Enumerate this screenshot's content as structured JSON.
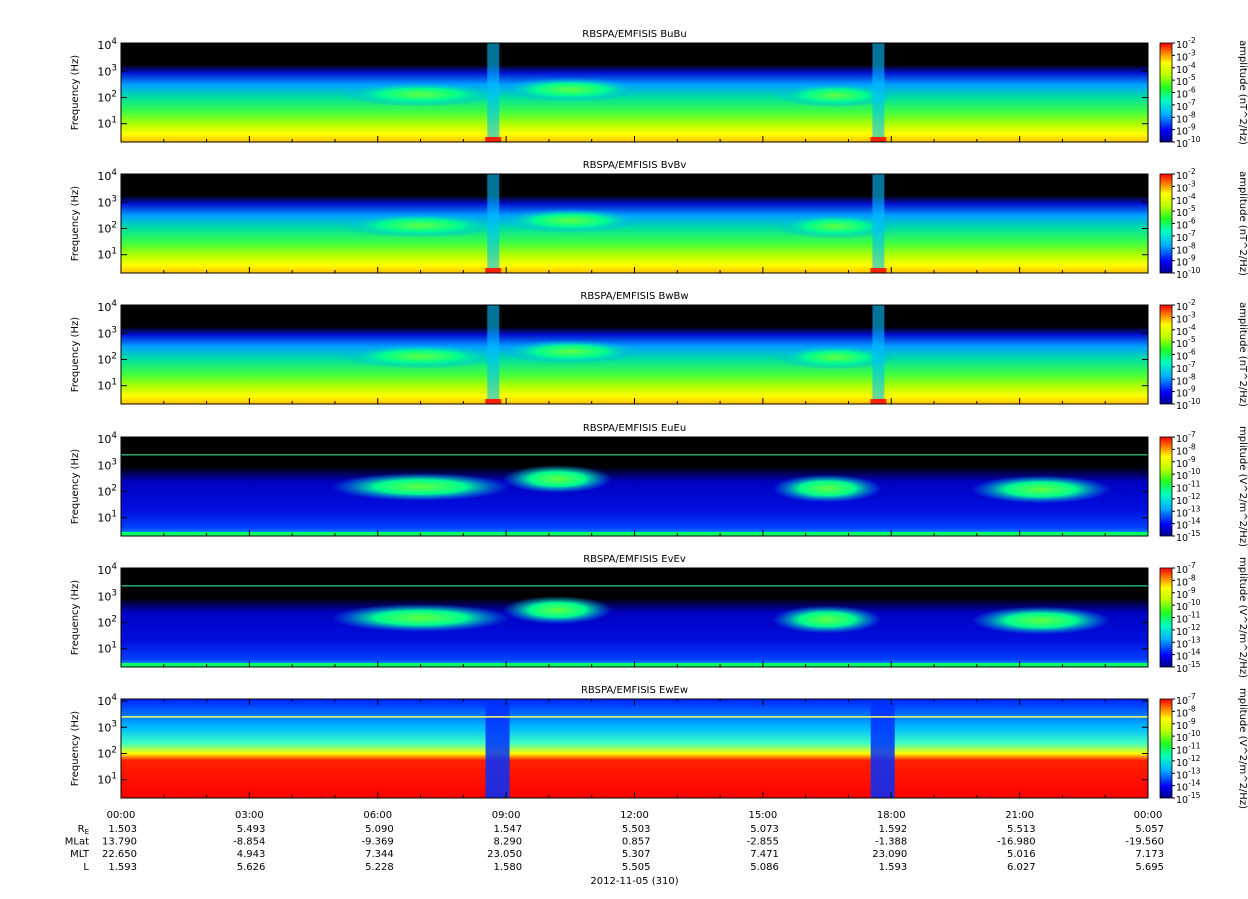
{
  "chart_data": {
    "type": "heatmap",
    "panels": [
      {
        "title": "RBSPA/EMFISIS  BuBu",
        "ylabel": "Frequency (Hz)",
        "yticks": [
          "10^4",
          "10^3",
          "10^2",
          "10^1"
        ],
        "cbar_label": "amplitude (nT^2/Hz)",
        "cbar_ticks": [
          "10^-2",
          "10^-3",
          "10^-4",
          "10^-5",
          "10^-6",
          "10^-7",
          "10^-8",
          "10^-9",
          "10^-10"
        ],
        "style": "mag"
      },
      {
        "title": "RBSPA/EMFISIS  BvBv",
        "ylabel": "Frequency (Hz)",
        "yticks": [
          "10^4",
          "10^3",
          "10^2",
          "10^1"
        ],
        "cbar_label": "amplitude (nT^2/Hz)",
        "cbar_ticks": [
          "10^-2",
          "10^-3",
          "10^-4",
          "10^-5",
          "10^-6",
          "10^-7",
          "10^-8",
          "10^-9",
          "10^-10"
        ],
        "style": "mag"
      },
      {
        "title": "RBSPA/EMFISIS  BwBw",
        "ylabel": "Frequency (Hz)",
        "yticks": [
          "10^4",
          "10^3",
          "10^2",
          "10^1"
        ],
        "cbar_label": "amplitude (nT^2/Hz)",
        "cbar_ticks": [
          "10^-2",
          "10^-3",
          "10^-4",
          "10^-5",
          "10^-6",
          "10^-7",
          "10^-8",
          "10^-9",
          "10^-10"
        ],
        "style": "mag"
      },
      {
        "title": "RBSPA/EMFISIS  EuEu",
        "ylabel": "Frequency (Hz)",
        "yticks": [
          "10^4",
          "10^3",
          "10^2",
          "10^1"
        ],
        "cbar_label": "mplitude (V^2/m^2/Hz)",
        "cbar_ticks": [
          "10^-7",
          "10^-8",
          "10^-9",
          "10^-10",
          "10^-11",
          "10^-12",
          "10^-13",
          "10^-14",
          "10^-15"
        ],
        "style": "elec"
      },
      {
        "title": "RBSPA/EMFISIS  EvEv",
        "ylabel": "Frequency (Hz)",
        "yticks": [
          "10^4",
          "10^3",
          "10^2",
          "10^1"
        ],
        "cbar_label": "mplitude (V^2/m^2/Hz)",
        "cbar_ticks": [
          "10^-7",
          "10^-8",
          "10^-9",
          "10^-10",
          "10^-11",
          "10^-12",
          "10^-13",
          "10^-14",
          "10^-15"
        ],
        "style": "elec"
      },
      {
        "title": "RBSPA/EMFISIS  EwEw",
        "ylabel": "Frequency (Hz)",
        "yticks": [
          "10^4",
          "10^3",
          "10^2",
          "10^1"
        ],
        "cbar_label": "mplitude (V^2/m^2/Hz)",
        "cbar_ticks": [
          "10^-7",
          "10^-8",
          "10^-9",
          "10^-10",
          "10^-11",
          "10^-12",
          "10^-13",
          "10^-14",
          "10^-15"
        ],
        "style": "ew"
      }
    ],
    "xticks": [
      "00:00",
      "03:00",
      "06:00",
      "09:00",
      "12:00",
      "15:00",
      "18:00",
      "21:00",
      "00:00"
    ],
    "ephemeris": [
      {
        "label": "R_E",
        "values": [
          "1.503",
          "5.493",
          "5.090",
          "1.547",
          "5.503",
          "5.073",
          "1.592",
          "5.513",
          "5.057"
        ]
      },
      {
        "label": "MLat",
        "values": [
          "13.790",
          "-8.854",
          "-9.369",
          "8.290",
          "0.857",
          "-2.855",
          "-1.388",
          "-16.980",
          "-19.560"
        ]
      },
      {
        "label": "MLT",
        "values": [
          "22.650",
          "4.943",
          "7.344",
          "23.050",
          "5.307",
          "7.471",
          "23.090",
          "5.016",
          "7.173"
        ]
      },
      {
        "label": "L",
        "values": [
          "1.593",
          "5.626",
          "5.228",
          "1.580",
          "5.505",
          "5.086",
          "1.593",
          "6.027",
          "5.695"
        ]
      }
    ],
    "xlabel": "2012-11-05 (310)",
    "yrange_hz": [
      2,
      12000
    ],
    "xrange_hours": [
      0,
      24
    ],
    "colorscale": [
      "#000080",
      "#0000ff",
      "#00c0ff",
      "#00ff80",
      "#80ff00",
      "#ffff00",
      "#ff8000",
      "#ff0000"
    ]
  }
}
